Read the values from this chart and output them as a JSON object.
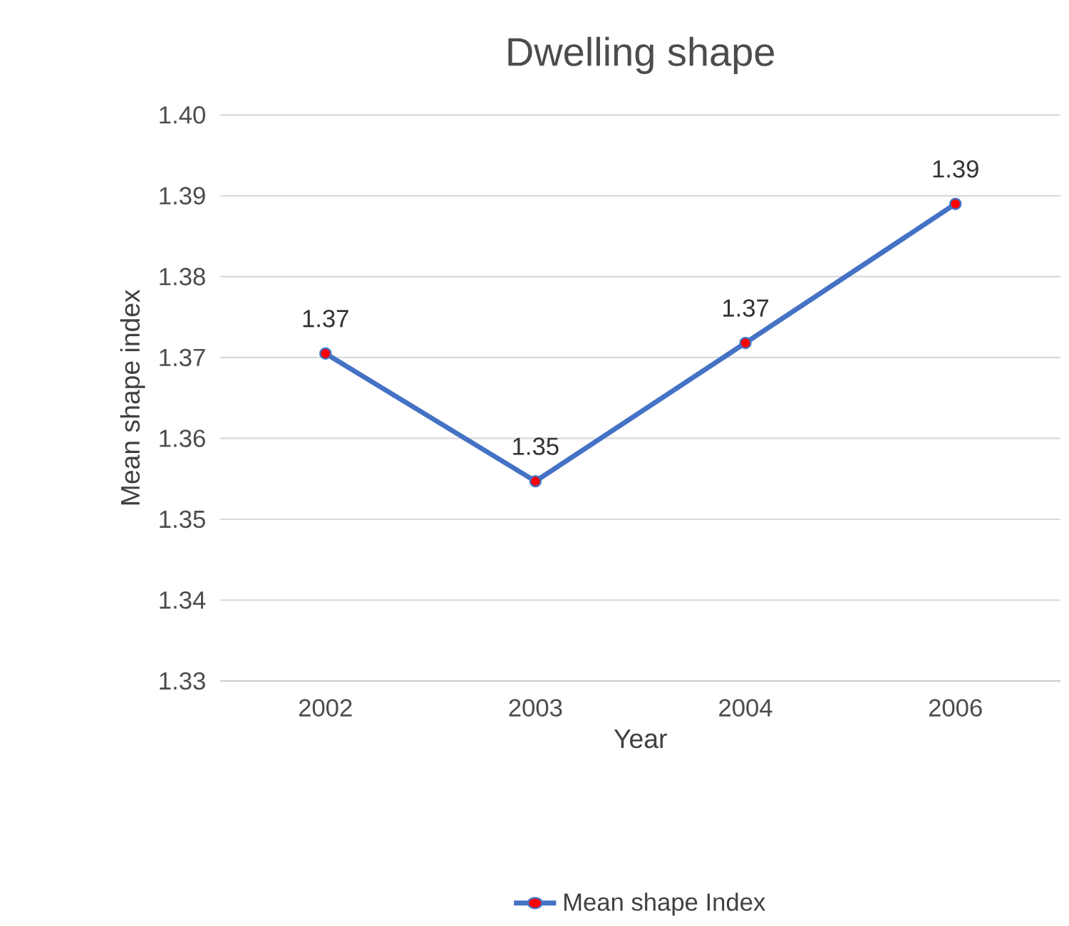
{
  "chart_data": {
    "type": "line",
    "title": "Dwelling shape",
    "xlabel": "Year",
    "ylabel": "Mean shape index",
    "categories": [
      "2002",
      "2003",
      "2004",
      "2006"
    ],
    "series": [
      {
        "name": "Mean shape Index",
        "color": "#4472c4",
        "values": [
          1.3705,
          1.3547,
          1.3718,
          1.389
        ],
        "value_labels": [
          "1.37",
          "1.35",
          "1.37",
          "1.39"
        ]
      }
    ],
    "ylim": [
      1.33,
      1.4
    ],
    "yticks": [
      1.33,
      1.34,
      1.35,
      1.36,
      1.37,
      1.38,
      1.39,
      {
        "value": 1.4,
        "label": "1.40"
      }
    ],
    "grid": "y",
    "legend": "bottom",
    "marker": "circle",
    "line_style": "solid"
  }
}
